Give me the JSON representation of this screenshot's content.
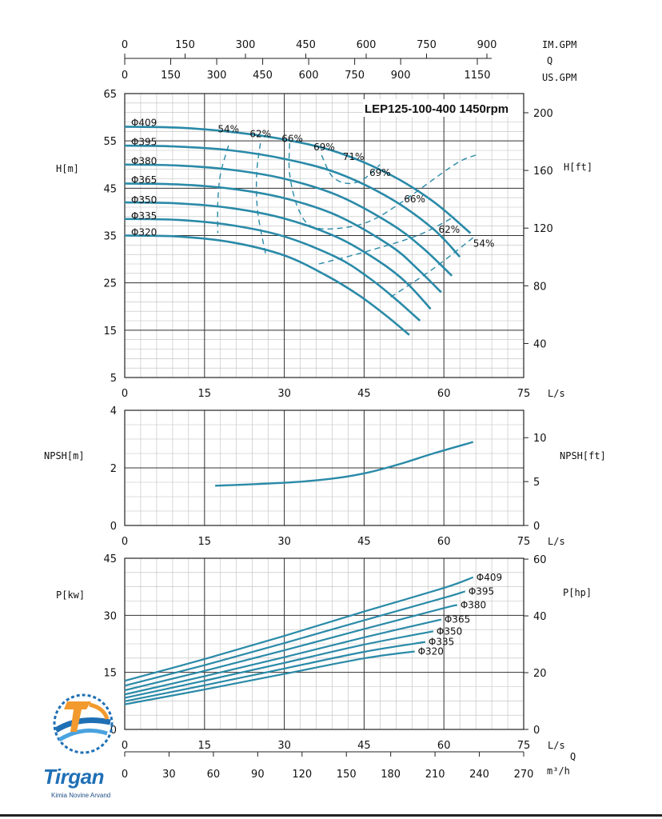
{
  "logo": {
    "brand": "Tirgan",
    "subtitle": "Kimia Novine Arvand",
    "icon": "gear-wave-logo"
  },
  "colors": {
    "curve": "#2a8aa8",
    "efficiency": "#2a8aa8",
    "grid_major": "#333333",
    "grid_minor": "#bdbdbd"
  },
  "chart_data": [
    {
      "type": "line",
      "name": "head",
      "title": "LEP125-100-400 1450rpm",
      "ylabel_left": "H[m]",
      "ylabel_right": "H[ft]",
      "xlabel": "L/s",
      "xlim": [
        0,
        75
      ],
      "ylim": [
        5,
        65
      ],
      "x_ticks": [
        0,
        15,
        30,
        45,
        60,
        75
      ],
      "y_ticks": [
        5,
        15,
        25,
        35,
        45,
        55,
        65
      ],
      "y_right_ticks": [
        40,
        80,
        120,
        160,
        200
      ],
      "top_axis_im": {
        "label": "IM.GPM",
        "ticks": [
          0,
          150,
          300,
          450,
          600,
          750,
          900
        ]
      },
      "top_axis_q": "Q",
      "top_axis_us": {
        "label": "US.GPM",
        "ticks": [
          0,
          150,
          300,
          450,
          600,
          750,
          900,
          1150
        ]
      },
      "series": [
        {
          "name": "Φ409",
          "x": [
            0,
            10,
            20,
            30,
            40,
            50,
            58,
            65
          ],
          "y": [
            58,
            57.8,
            56.9,
            55.3,
            52.6,
            47.8,
            42.2,
            35.5
          ]
        },
        {
          "name": "Φ395",
          "x": [
            0,
            10,
            20,
            30,
            40,
            50,
            58,
            63
          ],
          "y": [
            54,
            53.8,
            53,
            51.2,
            48.2,
            42.8,
            36.4,
            30.5
          ]
        },
        {
          "name": "Φ380",
          "x": [
            0,
            10,
            20,
            30,
            40,
            50,
            56,
            61.5
          ],
          "y": [
            50,
            49.8,
            48.9,
            47,
            43.5,
            37.5,
            32.4,
            26.5
          ]
        },
        {
          "name": "Φ365",
          "x": [
            0,
            10,
            20,
            30,
            40,
            50,
            55,
            59.5
          ],
          "y": [
            46,
            45.8,
            44.9,
            42.9,
            39.2,
            32.8,
            28,
            23
          ]
        },
        {
          "name": "Φ350",
          "x": [
            0,
            10,
            20,
            30,
            40,
            48,
            53,
            57.5
          ],
          "y": [
            42,
            41.8,
            40.8,
            38.6,
            34.6,
            29.4,
            25,
            19.5
          ]
        },
        {
          "name": "Φ335",
          "x": [
            0,
            10,
            20,
            30,
            40,
            46,
            51,
            55.5
          ],
          "y": [
            38.5,
            38.3,
            37.2,
            34.8,
            30.3,
            26,
            21.5,
            17
          ]
        },
        {
          "name": "Φ320",
          "x": [
            0,
            10,
            20,
            30,
            38,
            44,
            49,
            53.5
          ],
          "y": [
            35,
            34.8,
            33.6,
            30.8,
            26.5,
            22.4,
            18.2,
            14
          ]
        }
      ],
      "efficiency_labels": [
        "54%",
        "62%",
        "66%",
        "69%",
        "71%",
        "69%",
        "66%",
        "62%",
        "54%"
      ]
    },
    {
      "type": "line",
      "name": "npsh",
      "ylabel_left": "NPSH[m]",
      "ylabel_right": "NPSH[ft]",
      "xlabel": "L/s",
      "xlim": [
        0,
        75
      ],
      "ylim": [
        0,
        4
      ],
      "x_ticks": [
        0,
        15,
        30,
        45,
        60,
        75
      ],
      "y_ticks": [
        0,
        2,
        4
      ],
      "y_right_ticks": [
        0,
        5,
        10
      ],
      "series": [
        {
          "x": [
            17,
            25,
            33,
            40,
            46,
            52,
            58,
            65.5
          ],
          "y": [
            1.38,
            1.44,
            1.52,
            1.65,
            1.85,
            2.15,
            2.5,
            2.9
          ]
        }
      ]
    },
    {
      "type": "line",
      "name": "power",
      "ylabel_left": "P[kw]",
      "ylabel_right": "P[hp]",
      "xlabel": "L/s",
      "xlim": [
        0,
        75
      ],
      "ylim": [
        0,
        45
      ],
      "x_ticks": [
        0,
        15,
        30,
        45,
        60,
        75
      ],
      "y_ticks": [
        0,
        15,
        30,
        45
      ],
      "y_right_ticks": [
        0,
        20,
        40,
        60
      ],
      "bottom_axis": {
        "label": "m³/h",
        "q": "Q",
        "ticks": [
          0,
          30,
          60,
          90,
          120,
          150,
          180,
          210,
          240,
          270
        ]
      },
      "series": [
        {
          "name": "Φ409",
          "x": [
            0,
            15,
            30,
            45,
            60,
            65.5
          ],
          "y": [
            12.8,
            18.5,
            24.6,
            31,
            37.2,
            40
          ]
        },
        {
          "name": "Φ395",
          "x": [
            0,
            15,
            30,
            45,
            60,
            64
          ],
          "y": [
            11.5,
            16.9,
            22.7,
            28.7,
            34.6,
            36.3
          ]
        },
        {
          "name": "Φ380",
          "x": [
            0,
            15,
            30,
            45,
            60,
            62.5
          ],
          "y": [
            10.3,
            15.4,
            20.8,
            26.4,
            31.9,
            32.7
          ]
        },
        {
          "name": "Φ365",
          "x": [
            0,
            15,
            30,
            45,
            59.5
          ],
          "y": [
            9.2,
            14,
            19,
            24.2,
            28.9
          ]
        },
        {
          "name": "Φ350",
          "x": [
            0,
            15,
            30,
            45,
            58
          ],
          "y": [
            8.3,
            12.8,
            17.5,
            22.3,
            25.8
          ]
        },
        {
          "name": "Φ335",
          "x": [
            0,
            15,
            30,
            45,
            56.5
          ],
          "y": [
            7.4,
            11.6,
            16,
            20.4,
            23
          ]
        },
        {
          "name": "Φ320",
          "x": [
            0,
            15,
            30,
            45,
            54.5
          ],
          "y": [
            6.6,
            10.5,
            14.6,
            18.7,
            20.5
          ]
        }
      ]
    }
  ]
}
